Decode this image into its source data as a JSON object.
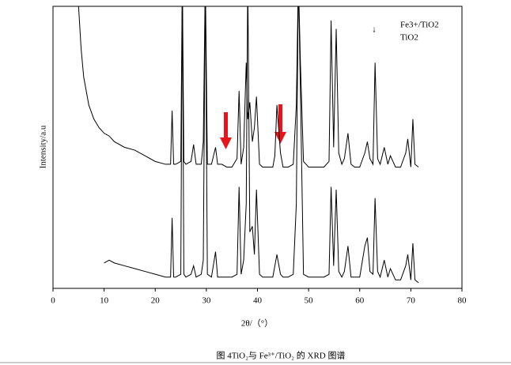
{
  "chart_data": {
    "type": "line",
    "x_label": "2θ/（°）",
    "y_label": "Intensity/a.u",
    "caption": "图 4TiO₂与 Fe³⁺/TiO₂ 的 XRD 图谱",
    "annotations": [
      "↓"
    ],
    "xlim": [
      0,
      80
    ],
    "xticks": [
      0,
      10,
      20,
      30,
      40,
      50,
      60,
      70,
      80
    ],
    "ylim": [
      0,
      100
    ],
    "x": [
      5,
      5.5,
      6,
      7,
      8,
      9,
      10,
      11,
      12,
      14,
      16,
      18,
      20,
      22,
      23,
      23.3,
      23.6,
      24,
      25,
      25.3,
      25.6,
      26,
      27,
      27.5,
      28,
      29,
      29.4,
      29.8,
      30.2,
      31,
      31.8,
      32.2,
      33,
      34,
      35,
      36,
      36.4,
      36.8,
      37.3,
      37.8,
      38.1,
      38.5,
      39,
      39.4,
      39.8,
      40.4,
      41,
      42,
      43,
      43.4,
      43.8,
      44.5,
      45,
      46,
      47,
      47.6,
      48,
      48.4,
      49,
      50,
      51,
      52,
      53,
      54,
      54.4,
      54.9,
      55.4,
      55.9,
      56.5,
      57,
      57.7,
      58.3,
      59,
      60,
      61,
      61.5,
      62,
      62.6,
      63,
      63.5,
      64,
      64.8,
      65.5,
      66,
      67,
      68,
      69,
      69.4,
      70,
      70.4,
      70.8,
      71.5
    ],
    "series": [
      {
        "name": "Fe3+/TiO2",
        "color": "#000000",
        "values": [
          100,
          85,
          75,
          65,
          60,
          57,
          55,
          54,
          52,
          50,
          49,
          47,
          45,
          44,
          44,
          63,
          44,
          44,
          45,
          110,
          45,
          44,
          45,
          51,
          44,
          44,
          52,
          110,
          44,
          44,
          50,
          44,
          44,
          43,
          43,
          46,
          70,
          44,
          50,
          80,
          60,
          66,
          52,
          57,
          68,
          44,
          43,
          43,
          43,
          47,
          65,
          48,
          43,
          43,
          44,
          65,
          110,
          80,
          45,
          43,
          43,
          43,
          43,
          45,
          95,
          50,
          92,
          48,
          44,
          46,
          55,
          44,
          43,
          43,
          48,
          52,
          46,
          44,
          80,
          46,
          44,
          50,
          44,
          47,
          43,
          43,
          48,
          53,
          43,
          60,
          44,
          43
        ]
      },
      {
        "name": "TiO2",
        "color": "#000000",
        "values": [
          null,
          null,
          null,
          null,
          null,
          null,
          9,
          10,
          9,
          8,
          7,
          6,
          5,
          4,
          4,
          25,
          4,
          4,
          5,
          110,
          5,
          4,
          5,
          8,
          4,
          5,
          10,
          110,
          5,
          4,
          13,
          4,
          4,
          4,
          4,
          5,
          36,
          5,
          10,
          30,
          110,
          20,
          22,
          12,
          35,
          5,
          4,
          4,
          4,
          8,
          12,
          5,
          4,
          4,
          5,
          30,
          110,
          70,
          5,
          4,
          4,
          4,
          4,
          5,
          36,
          8,
          35,
          6,
          4,
          6,
          15,
          4,
          4,
          4,
          15,
          18,
          6,
          5,
          32,
          6,
          4,
          10,
          4,
          7,
          3,
          3,
          8,
          12,
          3,
          16,
          3,
          2
        ]
      }
    ]
  }
}
